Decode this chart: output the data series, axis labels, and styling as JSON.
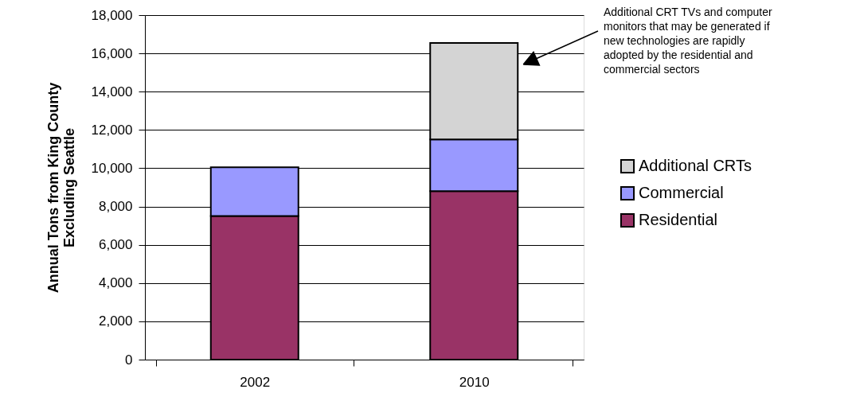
{
  "chart_data": {
    "type": "bar",
    "stacked": true,
    "ylabel": "Annual Tons from King County Excluding Seattle",
    "categories": [
      "2002",
      "2010"
    ],
    "series": [
      {
        "name": "Residential",
        "color": "#993366",
        "values": [
          7500,
          8800
        ]
      },
      {
        "name": "Commercial",
        "color": "#9999ff",
        "values": [
          2550,
          2700
        ]
      },
      {
        "name": "Additional CRTs",
        "color": "#d4d4d4",
        "values": [
          null,
          5050
        ]
      }
    ],
    "ylim": [
      0,
      18000
    ],
    "yticks": [
      0,
      {
        "value": 2000,
        "label": "2,000"
      },
      {
        "value": 4000,
        "label": "4,000"
      },
      {
        "value": 6000,
        "label": "6,000"
      },
      {
        "value": 8000,
        "label": "8,000"
      },
      {
        "value": 10000,
        "label": "10,000"
      },
      {
        "value": 12000,
        "label": "12,000"
      },
      {
        "value": 14000,
        "label": "14,000"
      },
      {
        "value": 16000,
        "label": "16,000"
      },
      {
        "value": 18000,
        "label": "18,000"
      }
    ],
    "grid": "y",
    "legend": "right",
    "annotations": [
      "Additional CRT TVs and computer monitors that may be generated if new technologies are rapidly adopted by the residential and commercial sectors"
    ]
  }
}
